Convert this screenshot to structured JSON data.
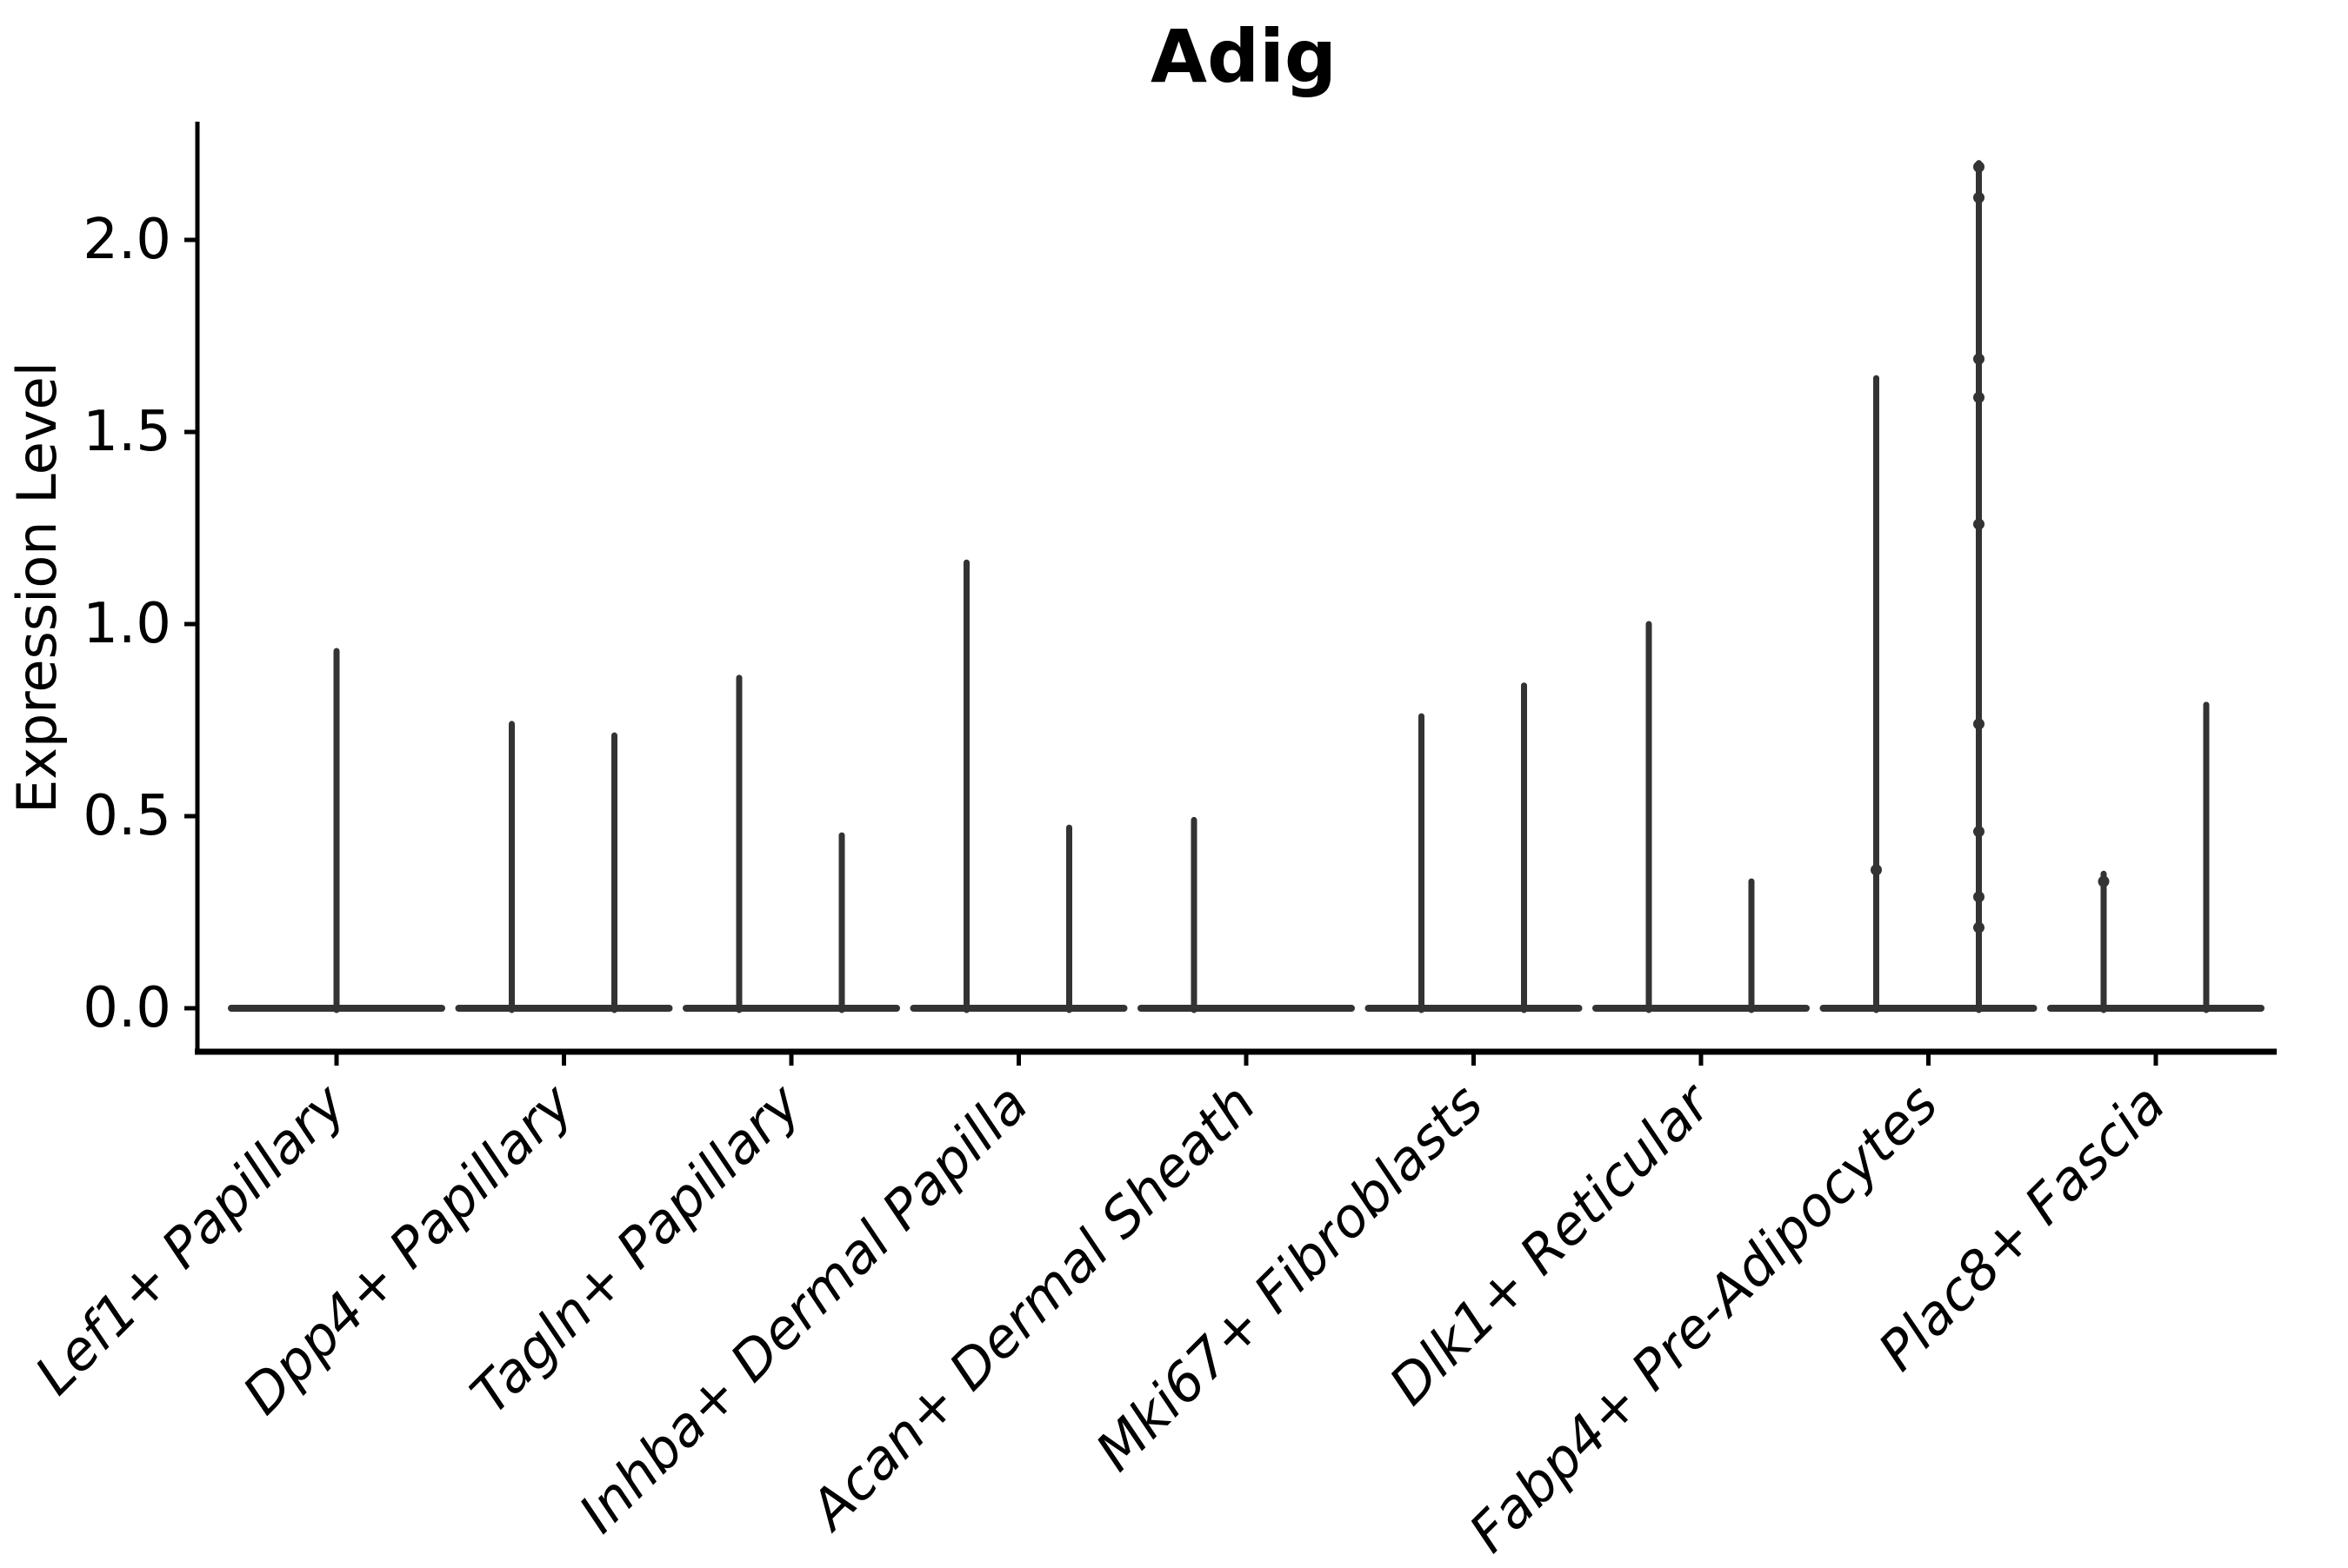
{
  "chart_data": {
    "type": "violin",
    "title": "Adig",
    "xlabel": "",
    "ylabel": "Expression Level",
    "yticks": [
      "0.0",
      "0.5",
      "1.0",
      "1.5",
      "2.0"
    ],
    "ylim": [
      -0.11,
      2.3
    ],
    "grid": false,
    "legend": "none",
    "violin_color": "#333333",
    "axis_color": "#000000",
    "categories": [
      {
        "label": "Lef1+ Papillary",
        "violins": [
          {
            "side": "center",
            "max": 0.93,
            "dots": []
          }
        ]
      },
      {
        "label": "Dpp4+ Papillary",
        "violins": [
          {
            "side": "left",
            "max": 0.74,
            "dots": []
          },
          {
            "side": "right",
            "max": 0.71,
            "dots": []
          }
        ]
      },
      {
        "label": "Tagln+ Papillary",
        "violins": [
          {
            "side": "left",
            "max": 0.86,
            "dots": []
          },
          {
            "side": "right",
            "max": 0.45,
            "dots": []
          }
        ]
      },
      {
        "label": "Inhba+ Dermal Papilla",
        "violins": [
          {
            "side": "left",
            "max": 1.16,
            "dots": []
          },
          {
            "side": "right",
            "max": 0.47,
            "dots": []
          }
        ]
      },
      {
        "label": "Acan+ Dermal Sheath",
        "violins": [
          {
            "side": "left",
            "max": 0.49,
            "dots": []
          }
        ]
      },
      {
        "label": "Mki67+ Fibroblasts",
        "violins": [
          {
            "side": "left",
            "max": 0.76,
            "dots": []
          },
          {
            "side": "right",
            "max": 0.84,
            "dots": []
          }
        ]
      },
      {
        "label": "Dlk1+ Reticular",
        "violins": [
          {
            "side": "left",
            "max": 1.0,
            "dots": []
          },
          {
            "side": "right",
            "max": 0.33,
            "dots": []
          }
        ]
      },
      {
        "label": "Fabp4+ Pre-Adipocytes",
        "violins": [
          {
            "side": "left",
            "max": 1.64,
            "dots": [
              0.36
            ]
          },
          {
            "side": "right",
            "max": 2.2,
            "dots": [
              2.19,
              2.11,
              1.69,
              1.59,
              1.26,
              0.74,
              0.46,
              0.29,
              0.21
            ]
          }
        ]
      },
      {
        "label": "Plac8+ Fascia",
        "violins": [
          {
            "side": "left",
            "max": 0.35,
            "dots": [
              0.33
            ]
          },
          {
            "side": "right",
            "max": 0.79,
            "dots": []
          }
        ]
      }
    ]
  }
}
